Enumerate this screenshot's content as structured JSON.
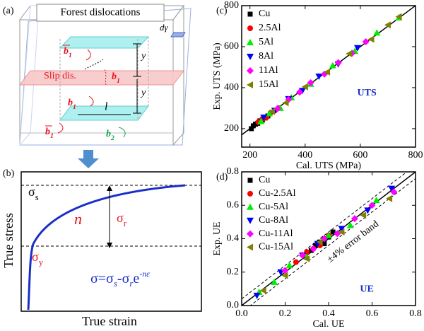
{
  "diagram_a": {
    "label": "(a)",
    "title": "Forest dislocations",
    "shear": "dγ",
    "slip": "Slip dis.",
    "spacing": "y",
    "length": "l",
    "burgers_top": "b1",
    "burgers_mid": "b1",
    "burgers_plane": "b1",
    "burgers_bottom_left": "b1",
    "burgers_bottom_right": "b2"
  },
  "schematic_b": {
    "label": "(b)",
    "x_label": "True strain",
    "y_label": "True stress",
    "sigma_s": "σs",
    "sigma_r": "σr",
    "sigma_y": "σy",
    "n": "n",
    "formula": [
      {
        "text": "σ=σ",
        "style": "normal"
      },
      {
        "text": "s",
        "style": "sub"
      },
      {
        "text": "-σ",
        "style": "normal"
      },
      {
        "text": "r",
        "style": "sub"
      },
      {
        "text": "e",
        "style": "normal"
      },
      {
        "text": "-nε",
        "style": "sup"
      }
    ]
  },
  "chart_data": [
    {
      "type": "scatter",
      "label": "(c)",
      "annotation": "UTS",
      "x_label": "Cal. UTS (MPa)",
      "y_label": "Exp. UTS (MPa)",
      "xlim": [
        170,
        800
      ],
      "ylim": [
        110,
        800
      ],
      "xticks": [
        200,
        400,
        600,
        800
      ],
      "yticks": [
        200,
        400,
        600,
        800
      ],
      "diagonal": true,
      "legend": "upper left",
      "series": [
        {
          "name": "Cu",
          "color": "#000000",
          "marker": "square",
          "x": [
            205,
            212,
            220,
            228,
            236,
            245,
            255,
            265
          ],
          "y": [
            200,
            214,
            222,
            226,
            238,
            242,
            252,
            262
          ]
        },
        {
          "name": "2.5Al",
          "color": "#ff0000",
          "marker": "circle",
          "x": [
            230,
            245,
            260,
            275,
            290,
            305
          ],
          "y": [
            232,
            248,
            255,
            278,
            288,
            300
          ]
        },
        {
          "name": "5Al",
          "color": "#00ee00",
          "marker": "triangle-up",
          "x": [
            240,
            270,
            310,
            350,
            420,
            500,
            580,
            660,
            740
          ],
          "y": [
            236,
            274,
            300,
            352,
            418,
            508,
            578,
            668,
            742
          ]
        },
        {
          "name": "8Al",
          "color": "#0000ff",
          "marker": "triangle-down",
          "x": [
            250,
            290,
            340,
            390,
            450,
            520,
            590
          ],
          "y": [
            255,
            288,
            345,
            385,
            455,
            515,
            594
          ]
        },
        {
          "name": "11Al",
          "color": "#ff00ff",
          "marker": "diamond",
          "x": [
            300,
            340,
            380,
            420,
            470,
            520,
            570,
            620
          ],
          "y": [
            298,
            342,
            378,
            424,
            466,
            522,
            568,
            624
          ]
        },
        {
          "name": "15Al",
          "color": "#808000",
          "marker": "triangle-left",
          "x": [
            280,
            330,
            400,
            480,
            560,
            640,
            700,
            740
          ],
          "y": [
            284,
            326,
            404,
            476,
            566,
            636,
            706,
            746
          ]
        }
      ]
    },
    {
      "type": "scatter",
      "label": "(d)",
      "annotation": "UE",
      "x_label": "Cal. UE",
      "y_label": "Exp. UE",
      "xlim": [
        0,
        0.8
      ],
      "ylim": [
        0,
        0.8
      ],
      "xticks": [
        {
          "value": 0,
          "label": "0.0"
        },
        0.2,
        0.4,
        0.6,
        0.8
      ],
      "yticks": [
        {
          "value": 0,
          "label": "0.0"
        },
        0.2,
        0.4,
        0.6,
        0.8
      ],
      "diagonal": true,
      "error_band": {
        "value": 0.04,
        "label": "±4% error band"
      },
      "legend": "upper left",
      "series": [
        {
          "name": "Cu",
          "color": "#000000",
          "marker": "square",
          "x": [
            0.32,
            0.34,
            0.36,
            0.38,
            0.4,
            0.42,
            0.38
          ],
          "y": [
            0.33,
            0.36,
            0.38,
            0.4,
            0.41,
            0.44,
            0.37
          ]
        },
        {
          "name": "Cu-2.5Al",
          "color": "#ff0000",
          "marker": "circle",
          "x": [
            0.25,
            0.3,
            0.33,
            0.36,
            0.4
          ],
          "y": [
            0.26,
            0.32,
            0.34,
            0.36,
            0.42
          ]
        },
        {
          "name": "Cu-5Al",
          "color": "#00ee00",
          "marker": "triangle-up",
          "x": [
            0.08,
            0.15,
            0.22,
            0.3,
            0.4,
            0.5,
            0.62
          ],
          "y": [
            0.08,
            0.14,
            0.24,
            0.29,
            0.42,
            0.48,
            0.63
          ]
        },
        {
          "name": "Cu-8Al",
          "color": "#0000ff",
          "marker": "triangle-down",
          "x": [
            0.07,
            0.18,
            0.28,
            0.35,
            0.46,
            0.58,
            0.69
          ],
          "y": [
            0.06,
            0.2,
            0.3,
            0.37,
            0.46,
            0.57,
            0.7
          ]
        },
        {
          "name": "Cu-11Al",
          "color": "#ff00ff",
          "marker": "diamond",
          "x": [
            0.2,
            0.28,
            0.33,
            0.38,
            0.44,
            0.52,
            0.6,
            0.7
          ],
          "y": [
            0.21,
            0.3,
            0.34,
            0.4,
            0.43,
            0.52,
            0.6,
            0.68
          ]
        },
        {
          "name": "Cu-15Al",
          "color": "#808000",
          "marker": "triangle-left",
          "x": [
            0.1,
            0.2,
            0.3,
            0.36,
            0.46,
            0.56,
            0.68
          ],
          "y": [
            0.09,
            0.18,
            0.28,
            0.38,
            0.44,
            0.54,
            0.64
          ]
        }
      ]
    }
  ]
}
